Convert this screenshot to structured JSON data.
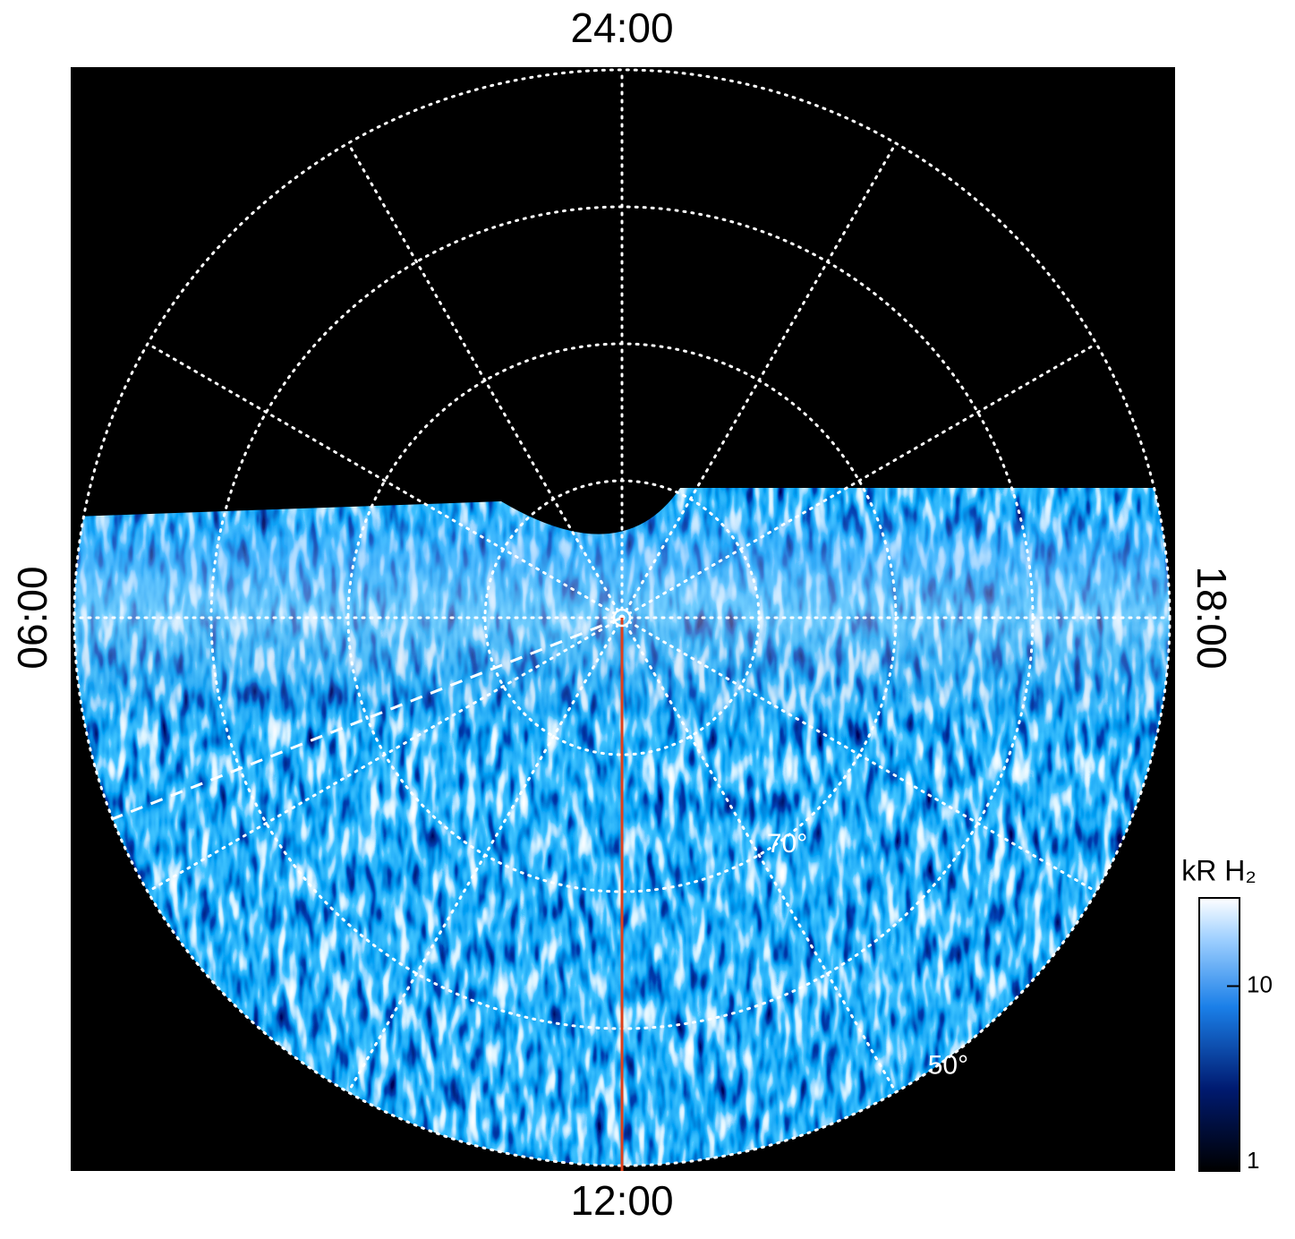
{
  "chart_data": {
    "type": "polar-map",
    "rlim": [
      90,
      50
    ],
    "lat_grid": [
      80,
      70,
      60,
      50
    ],
    "lat_labels": [
      {
        "value": 70,
        "label": "70°"
      },
      {
        "value": 50,
        "label": "50°"
      }
    ],
    "hour_grid": [
      0,
      2,
      4,
      6,
      8,
      10,
      12,
      14,
      16,
      18,
      20,
      22
    ],
    "hour_labels": [
      {
        "value": 24,
        "label": "24:00"
      },
      {
        "value": 6,
        "label": "06:00"
      },
      {
        "value": 12,
        "label": "12:00"
      },
      {
        "value": 18,
        "label": "18:00"
      }
    ],
    "grid": true,
    "colorbar": {
      "label": "kR H₂",
      "scale": "log",
      "lim": [
        1,
        30
      ],
      "ticks": [
        1,
        10
      ]
    }
  }
}
